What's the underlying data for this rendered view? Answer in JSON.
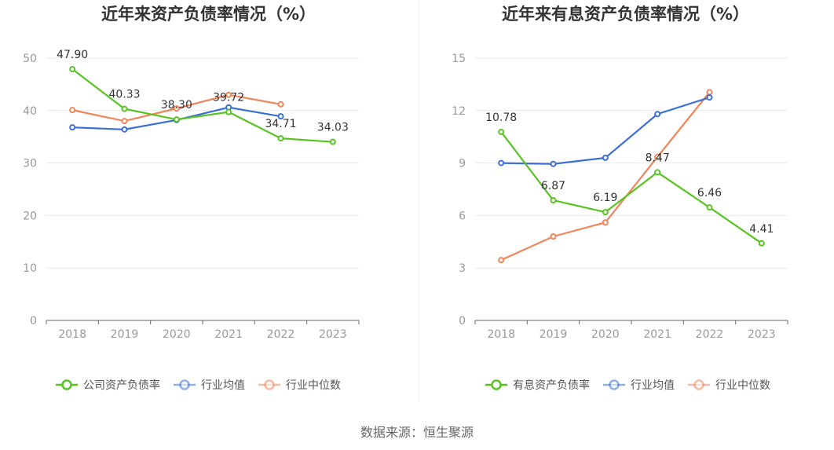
{
  "source": "数据来源：恒生聚源",
  "colors": {
    "company": "#58c322",
    "avg": "#3a6fd8",
    "median": "#f0845a",
    "grid": "#e6e8ec",
    "axis": "#666666",
    "label": "#999999"
  },
  "chart_data": [
    {
      "type": "line",
      "title": "近年来资产负债率情况（%）",
      "x": [
        "2018",
        "2019",
        "2020",
        "2021",
        "2022",
        "2023"
      ],
      "ylim": [
        0,
        50
      ],
      "yticks": [
        0,
        10,
        20,
        30,
        40,
        50
      ],
      "grid": true,
      "legend_position": "bottom",
      "series": [
        {
          "name": "公司资产负债率",
          "color": "#58c322",
          "values": [
            47.9,
            40.33,
            38.3,
            39.72,
            34.71,
            34.03
          ],
          "labels": [
            "47.90",
            "40.33",
            "38.30",
            "39.72",
            "34.71",
            "34.03"
          ]
        },
        {
          "name": "行业均值",
          "color": "#3a6fd8",
          "values": [
            36.8,
            36.4,
            38.2,
            40.6,
            38.9,
            null
          ]
        },
        {
          "name": "行业中位数",
          "color": "#f0845a",
          "values": [
            40.1,
            38.0,
            40.4,
            43.0,
            41.2,
            null
          ]
        }
      ]
    },
    {
      "type": "line",
      "title": "近年来有息资产负债率情况（%）",
      "x": [
        "2018",
        "2019",
        "2020",
        "2021",
        "2022",
        "2023"
      ],
      "ylim": [
        0,
        15
      ],
      "yticks": [
        0,
        3,
        6,
        9,
        12,
        15
      ],
      "grid": true,
      "legend_position": "bottom",
      "series": [
        {
          "name": "有息资产负债率",
          "color": "#58c322",
          "values": [
            10.78,
            6.87,
            6.19,
            8.47,
            6.46,
            4.41
          ],
          "labels": [
            "10.78",
            "6.87",
            "6.19",
            "8.47",
            "6.46",
            "4.41"
          ]
        },
        {
          "name": "行业均值",
          "color": "#3a6fd8",
          "values": [
            9.0,
            8.95,
            9.3,
            11.8,
            12.75,
            null
          ]
        },
        {
          "name": "行业中位数",
          "color": "#f0845a",
          "values": [
            3.45,
            4.8,
            5.6,
            9.35,
            13.05,
            null
          ]
        }
      ]
    }
  ]
}
